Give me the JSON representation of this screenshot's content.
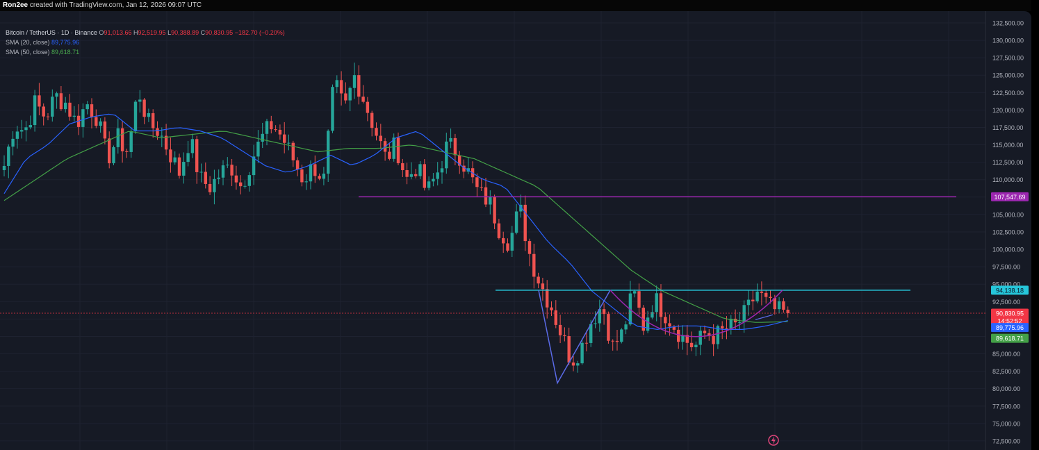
{
  "header": {
    "author": "Ron2ee",
    "created_with": "created with TradingView.com, Jan 12, 2026 09:07 UTC"
  },
  "legend": {
    "symbol": "Bitcoin / TetherUS · 1D · Binance",
    "ohlc": [
      {
        "k": "O",
        "v": "91,013.66"
      },
      {
        "k": "H",
        "v": "92,519.95"
      },
      {
        "k": "L",
        "v": "90,388.89"
      },
      {
        "k": "C",
        "v": "90,830.95"
      }
    ],
    "change": "−182.70 (−0.20%)",
    "sma20_label": "SMA (20, close)",
    "sma20_value": "89,775.96",
    "sma50_label": "SMA (50, close)",
    "sma50_value": "89,618.71"
  },
  "colors": {
    "background": "#161a25",
    "up": "#26a69a",
    "down": "#ef5350",
    "sma20": "#2962ff",
    "sma50": "#43a047",
    "resistance": "#9c27b0",
    "neckline": "#26c6da",
    "pattern": "#5b6be8",
    "last_price": "#f23645"
  },
  "chart_data": {
    "type": "candlestick",
    "symbol": "BTCUSDT",
    "interval": "1D",
    "ylim": [
      72500,
      132500
    ],
    "y_ticks": [
      "72,500.00",
      "75,000.00",
      "77,500.00",
      "80,000.00",
      "82,500.00",
      "85,000.00",
      "87,500.00",
      "90,000.00",
      "92,500.00",
      "95,000.00",
      "97,500.00",
      "100,000.00",
      "102,500.00",
      "105,000.00",
      "107,500.00",
      "110,000.00",
      "112,500.00",
      "115,000.00",
      "117,500.00",
      "120,000.00",
      "122,500.00",
      "125,000.00",
      "127,500.00",
      "130,000.00",
      "132,500.00"
    ],
    "close_path": [
      112000,
      118000,
      117000,
      121000,
      119000,
      122000,
      121000,
      118000,
      121000,
      119000,
      113000,
      116000,
      114000,
      123000,
      118000,
      117000,
      114000,
      111000,
      116000,
      110000,
      109000,
      111000,
      112000,
      109000,
      113000,
      116000,
      118000,
      116000,
      113000,
      110000,
      112000,
      110000,
      124000,
      120000,
      125000,
      121000,
      117000,
      113000,
      115000,
      110000,
      112000,
      108000,
      111000,
      115000,
      114000,
      111000,
      108000,
      107000,
      103000,
      101000,
      106000,
      99000,
      95000,
      92000,
      88000,
      84000,
      86000,
      90000,
      92000,
      86000,
      88000,
      94000,
      89000,
      93000,
      91000,
      89000,
      87000,
      86000,
      88000,
      87500,
      88500,
      89000,
      91000,
      94000,
      92000,
      91000,
      90830.95
    ],
    "sma20_path": [
      108000,
      113000,
      115000,
      118000,
      119000,
      119500,
      117000,
      117000,
      117500,
      117000,
      116000,
      114000,
      112000,
      111000,
      112000,
      113500,
      112000,
      113500,
      116000,
      117000,
      114500,
      112000,
      110000,
      109000,
      105000,
      101000,
      98000,
      94000,
      91500,
      89000,
      88500,
      89000,
      89000,
      88500,
      88500,
      89000,
      89775.96
    ],
    "sma50_path": [
      107000,
      110000,
      113000,
      115000,
      117000,
      116000,
      116500,
      117000,
      116000,
      115000,
      114000,
      114500,
      114500,
      115000,
      114000,
      113000,
      111000,
      109000,
      105000,
      101000,
      97000,
      94000,
      92000,
      90000,
      89500,
      89618.71
    ],
    "lines": [
      {
        "name": "resistance",
        "price": 107547.69,
        "label": "107,547.69"
      },
      {
        "name": "neckline",
        "price": 94138.18,
        "label": "94,138.18"
      }
    ],
    "last_price": {
      "price": 90830.95,
      "label": "90,830.95",
      "countdown": "14:52:52"
    },
    "sma20_last": "89,775.96",
    "sma50_last": "89,618.71",
    "patterns": [
      "double bottom (V + rounded)"
    ]
  }
}
